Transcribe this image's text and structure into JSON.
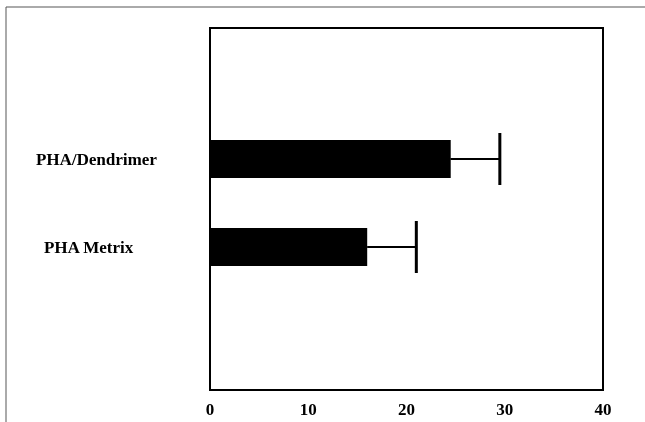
{
  "chart_data": {
    "type": "bar",
    "orientation": "horizontal",
    "categories": [
      "PHA/Dendrimer",
      "PHA Metrix"
    ],
    "values": [
      24.5,
      16
    ],
    "error": [
      5,
      5
    ],
    "xlim": [
      0,
      40
    ],
    "xticks": [
      "0",
      "10",
      "20",
      "30",
      "40"
    ],
    "title": "",
    "xlabel": "",
    "ylabel": "",
    "grid": false,
    "legend": "none",
    "bar_color": "#000000"
  }
}
